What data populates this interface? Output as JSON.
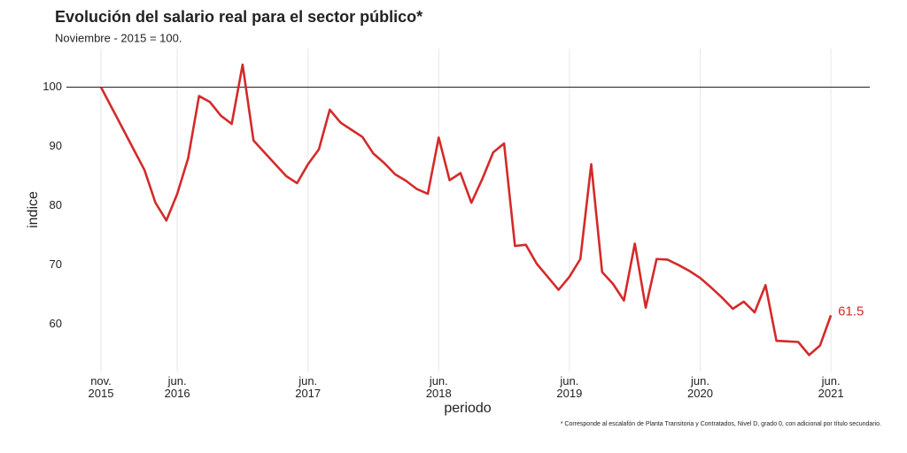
{
  "chart_data": {
    "type": "line",
    "title": "Evolución del salario real para el sector público*",
    "subtitle": "Noviembre - 2015 = 100.",
    "xlabel": "periodo",
    "ylabel": "indice",
    "footnote": "* Corresponde al escalafón de Planta Transitoria y Contratados, Nivel D, grado 0, con adicional por título secundario.",
    "categories": [
      "nov.\n2015",
      null,
      null,
      null,
      null,
      null,
      null,
      "jun.\n2016",
      null,
      null,
      null,
      null,
      null,
      null,
      null,
      null,
      null,
      null,
      null,
      "jun.\n2017",
      null,
      null,
      null,
      null,
      null,
      null,
      null,
      null,
      null,
      null,
      null,
      "jun.\n2018",
      null,
      null,
      null,
      null,
      null,
      null,
      null,
      null,
      null,
      null,
      null,
      "jun.\n2019",
      null,
      null,
      null,
      null,
      null,
      null,
      null,
      null,
      null,
      null,
      null,
      "jun.\n2020",
      null,
      null,
      null,
      null,
      null,
      null,
      null,
      null,
      null,
      null,
      null,
      "jun.\n2021"
    ],
    "series": [
      {
        "color": "#d42a2a",
        "values": [
          100,
          96.5,
          93,
          89.5,
          86,
          80.5,
          77.5,
          82,
          88,
          98.5,
          97.5,
          95.2,
          93.8,
          103.8,
          91,
          89,
          87,
          85,
          83.8,
          87,
          89.5,
          96.2,
          94,
          92.8,
          91.6,
          88.8,
          87.2,
          85.3,
          84.2,
          82.8,
          82,
          91.5,
          84.3,
          85.5,
          80.5,
          84.5,
          89,
          90.5,
          73.2,
          73.4,
          70.2,
          68,
          65.8,
          68,
          71,
          87,
          68.8,
          66.8,
          64,
          73.6,
          62.8,
          71,
          70.9,
          70,
          69,
          67.8,
          66.2,
          64.5,
          62.6,
          63.8,
          62,
          66.6,
          57.2,
          57.1,
          57,
          54.8,
          56.4,
          61.5
        ]
      }
    ],
    "ylim": [
      52,
      106.5
    ],
    "yticks": [
      60,
      70,
      80,
      90,
      100
    ],
    "reference_line": 100,
    "grid": true
  }
}
